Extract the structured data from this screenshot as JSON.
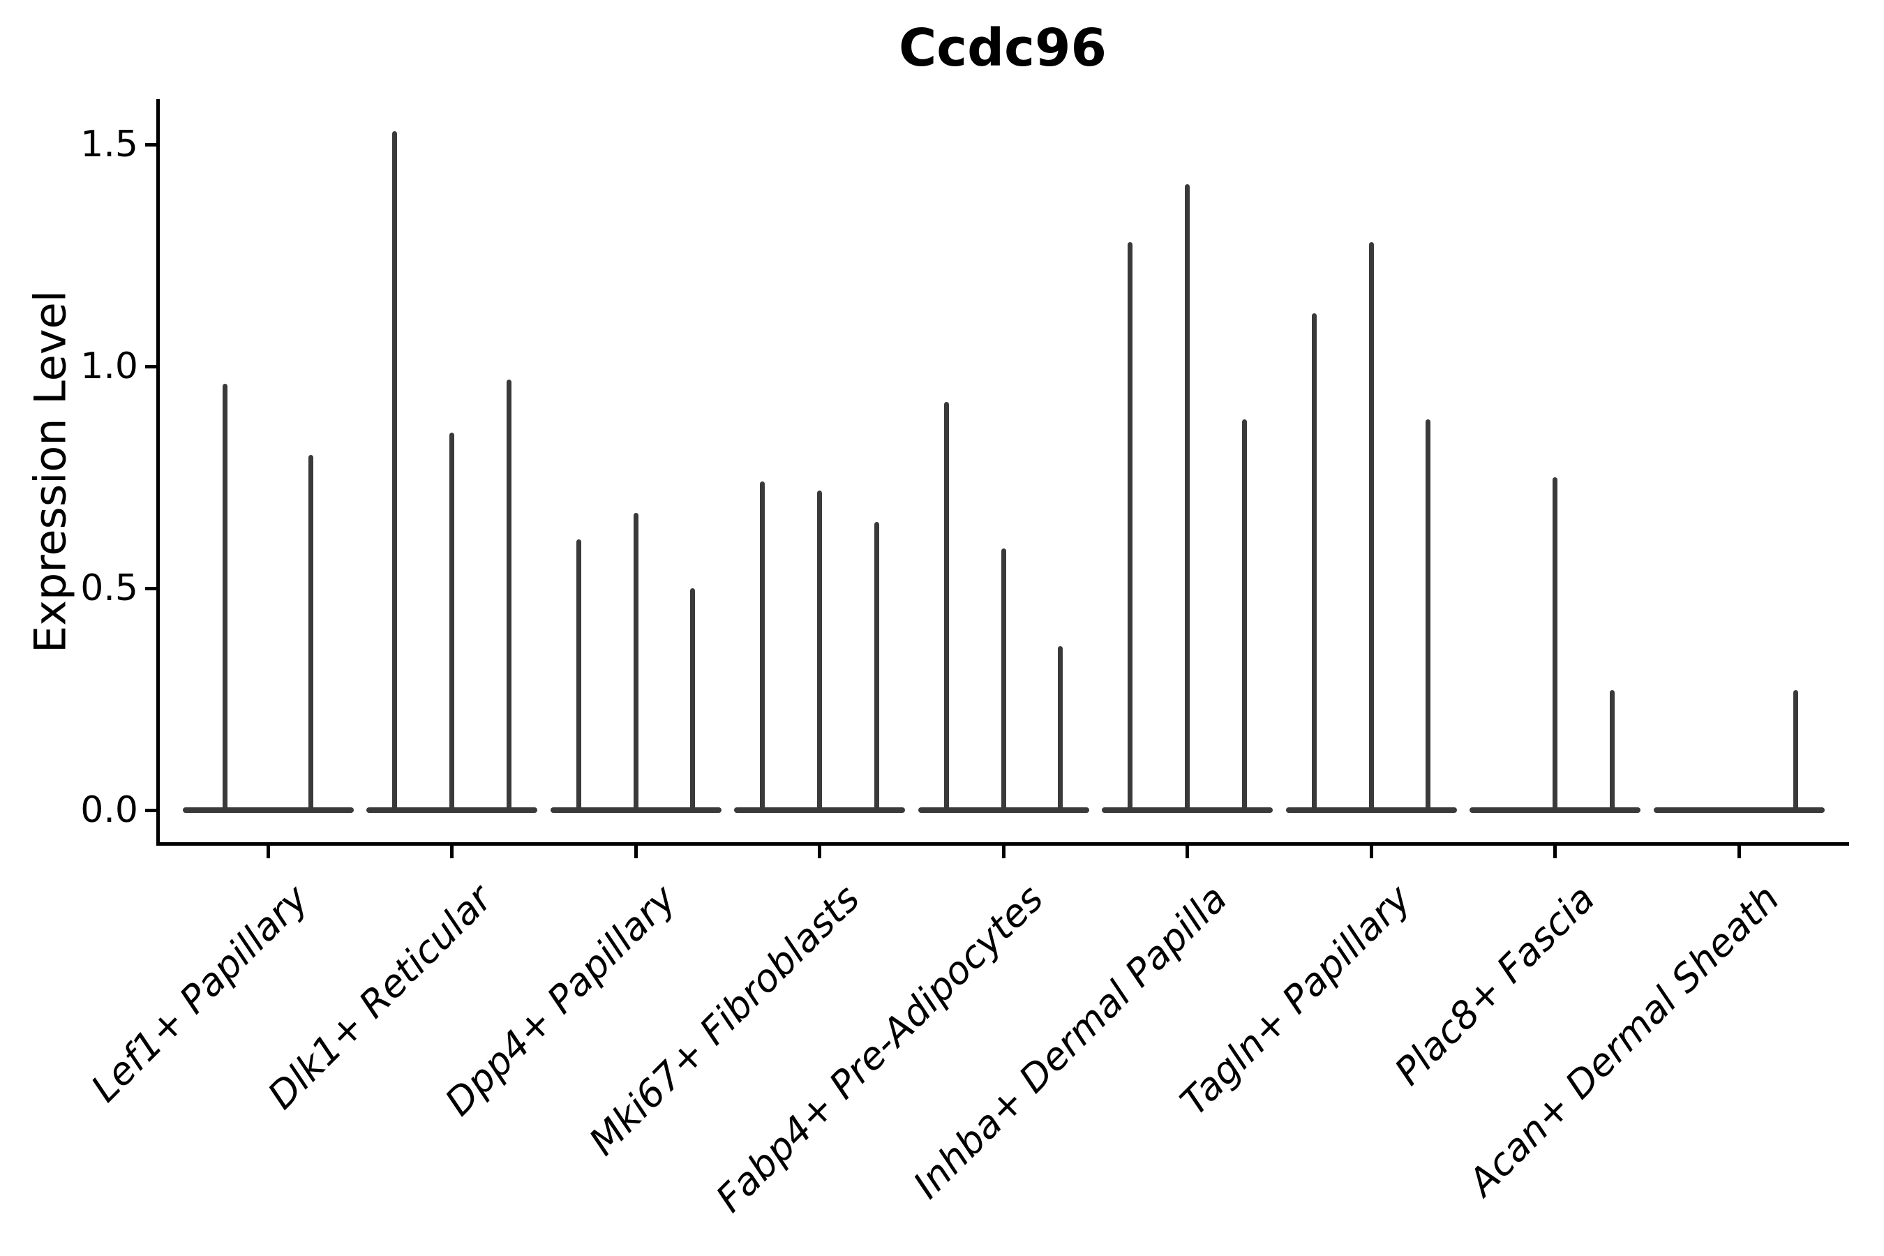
{
  "title": "Ccdc96",
  "chart_data": {
    "type": "violin",
    "title": "Ccdc96",
    "xlabel": "",
    "ylabel": "Expression Level",
    "ylim": [
      0,
      1.6
    ],
    "yticks": [
      0.0,
      0.5,
      1.0,
      1.5
    ],
    "ytick_labels": [
      "0.0",
      "0.5",
      "1.0",
      "1.5"
    ],
    "grid": "off",
    "legend": "none",
    "x_label_style": "italic, rotated 45 degrees",
    "categories": [
      "Lef1+ Papillary",
      "Dlk1+ Reticular",
      "Dpp4+ Papillary",
      "Mki67+ Fibroblasts",
      "Fabp4+ Pre-Adipocytes",
      "Inhba+ Dermal Papilla",
      "Tagln+ Papillary",
      "Plac8+ Fascia",
      "Acan+ Dermal Sheath"
    ],
    "series": [
      {
        "category": "Lef1+ Papillary",
        "violin_max_values": [
          0.96,
          0.8
        ]
      },
      {
        "category": "Dlk1+ Reticular",
        "violin_max_values": [
          1.53,
          0.85,
          0.97
        ]
      },
      {
        "category": "Dpp4+ Papillary",
        "violin_max_values": [
          0.61,
          0.67,
          0.5
        ]
      },
      {
        "category": "Mki67+ Fibroblasts",
        "violin_max_values": [
          0.74,
          0.72,
          0.65
        ]
      },
      {
        "category": "Fabp4+ Pre-Adipocytes",
        "violin_max_values": [
          0.92,
          0.59,
          0.37
        ]
      },
      {
        "category": "Inhba+ Dermal Papilla",
        "violin_max_values": [
          1.28,
          1.41,
          0.88
        ]
      },
      {
        "category": "Tagln+ Papillary",
        "violin_max_values": [
          1.12,
          1.28,
          0.88
        ]
      },
      {
        "category": "Plac8+ Fascia",
        "violin_max_values": [
          0,
          0.75,
          0.27
        ]
      },
      {
        "category": "Acan+ Dermal Sheath",
        "violin_max_values": [
          0,
          0,
          0.27
        ]
      }
    ],
    "violin_shape": "collapsed to flat line at 0 with narrow spike up to max; 0 means flat only",
    "violin_color": "#3a3a3a",
    "axis_color": "#000000"
  }
}
